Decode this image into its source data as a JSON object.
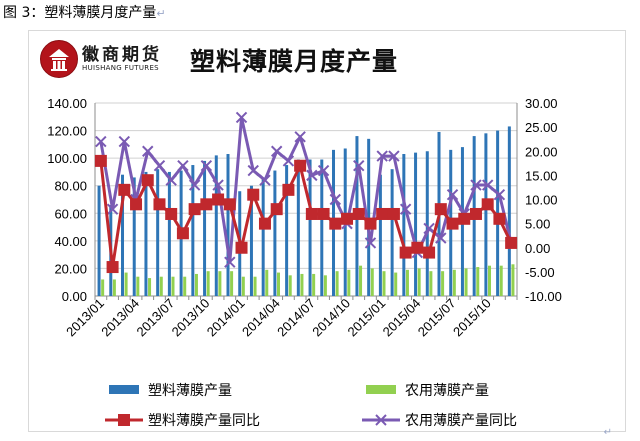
{
  "caption": "图 3：塑料薄膜月度产量",
  "caption_mark": "↵",
  "logo": {
    "name_cn": "徽商期货",
    "name_en": "HUISHANG FUTURES",
    "badge_color": "#b3141b"
  },
  "return_mark": "↵",
  "chart_data": {
    "type": "bar",
    "title": "塑料薄膜月度产量",
    "xlabel": "",
    "ylabel": "",
    "ylim": [
      0,
      140
    ],
    "y2lim": [
      -10,
      30
    ],
    "yticks": [
      "0.00",
      "20.00",
      "40.00",
      "60.00",
      "80.00",
      "100.00",
      "120.00",
      "140.00"
    ],
    "y2ticks": [
      "-10.00",
      "-5.00",
      "0.00",
      "5.00",
      "10.00",
      "15.00",
      "20.00",
      "25.00",
      "30.00"
    ],
    "xtick_labels": [
      "2013/01",
      "2013/04",
      "2013/07",
      "2013/10",
      "2014/01",
      "2014/04",
      "2014/07",
      "2014/10",
      "2015/01",
      "2015/04",
      "2015/07",
      "2015/10"
    ],
    "xtick_every": 3,
    "grid": true,
    "legend_position": "bottom",
    "categories": [
      "2013/01",
      "2013/02",
      "2013/03",
      "2013/04",
      "2013/05",
      "2013/06",
      "2013/07",
      "2013/08",
      "2013/09",
      "2013/10",
      "2013/11",
      "2013/12",
      "2014/01",
      "2014/02",
      "2014/03",
      "2014/04",
      "2014/05",
      "2014/06",
      "2014/07",
      "2014/08",
      "2014/09",
      "2014/10",
      "2014/11",
      "2014/12",
      "2015/01",
      "2015/02",
      "2015/03",
      "2015/04",
      "2015/05",
      "2015/06",
      "2015/07",
      "2015/08",
      "2015/09",
      "2015/10",
      "2015/11",
      "2015/12"
    ],
    "series": [
      {
        "name": "塑料薄膜产量",
        "type": "bar",
        "axis": "left",
        "color": "#2e75b6",
        "values": [
          80,
          66,
          88,
          86,
          90,
          92,
          90,
          91,
          95,
          98,
          102,
          103,
          76,
          80,
          86,
          91,
          95,
          99,
          99,
          99,
          106,
          107,
          116,
          114,
          88,
          92,
          103,
          104,
          105,
          119,
          106,
          108,
          116,
          118,
          120,
          123
        ]
      },
      {
        "name": "农用薄膜产量",
        "type": "bar",
        "axis": "left",
        "color": "#92d050",
        "values": [
          12,
          12,
          17,
          14,
          13,
          14,
          14,
          14,
          16,
          18,
          18,
          18,
          14,
          14,
          19,
          17,
          15,
          16,
          16,
          15,
          18,
          19,
          22,
          20,
          18,
          17,
          19,
          20,
          18,
          18,
          19,
          20,
          21,
          22,
          22,
          23
        ]
      },
      {
        "name": "塑料薄膜产量同比",
        "type": "line",
        "axis": "right",
        "color": "#c0282d",
        "marker": "square",
        "values": [
          18,
          -4,
          12,
          9,
          14,
          9,
          7,
          3,
          8,
          9,
          10,
          9,
          0,
          11,
          5,
          8,
          12,
          17,
          7,
          7,
          5,
          6,
          7,
          5,
          7,
          7,
          -1,
          0,
          -1,
          8,
          5,
          6,
          7,
          9,
          6,
          1
        ]
      },
      {
        "name": "农用薄膜产量同比",
        "type": "line",
        "axis": "right",
        "color": "#7a5ab3",
        "marker": "x",
        "values": [
          22,
          8,
          22,
          10,
          20,
          17,
          14,
          17,
          13,
          17,
          13,
          -3,
          27,
          16,
          14,
          20,
          18,
          23,
          15,
          16,
          10,
          5,
          17,
          1,
          19,
          19,
          8,
          -1,
          4,
          2,
          11,
          7,
          13,
          13,
          11,
          1
        ]
      }
    ]
  }
}
